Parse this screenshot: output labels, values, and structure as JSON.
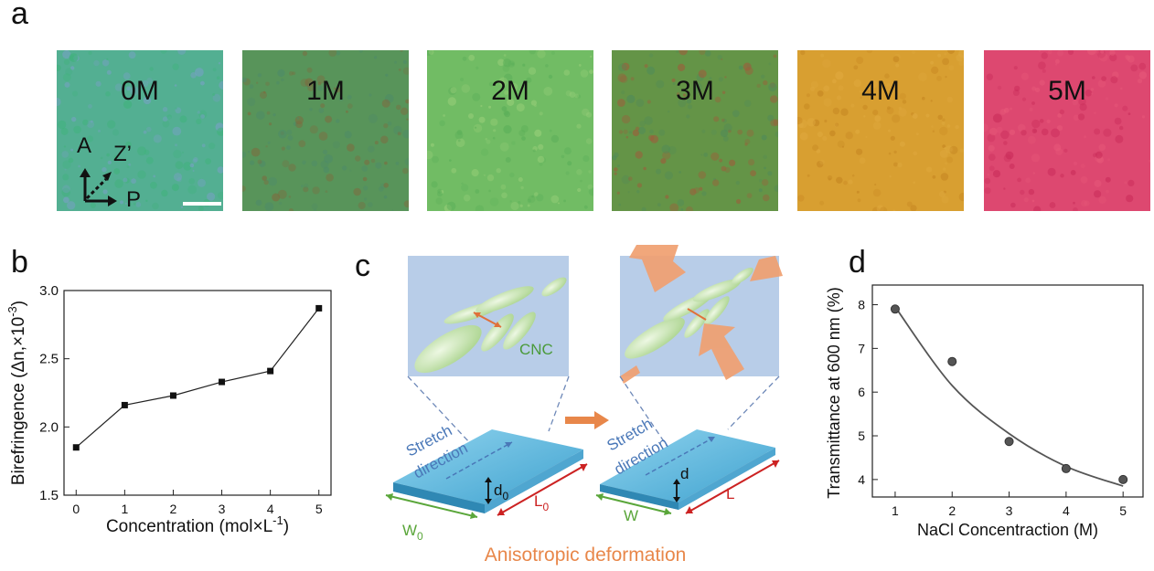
{
  "panel_labels": {
    "a": "a",
    "b": "b",
    "c": "c",
    "d": "d"
  },
  "micrographs": [
    {
      "label": "0M",
      "color_main": "#5fae9e",
      "color_b": "#7aa0c8",
      "color_c": "#3fb37a"
    },
    {
      "label": "1M",
      "color_main": "#5f9a52",
      "color_b": "#7f6a3e",
      "color_c": "#4d8a6a"
    },
    {
      "label": "2M",
      "color_main": "#7fc46a",
      "color_b": "#9bd07a",
      "color_c": "#5aae58"
    },
    {
      "label": "3M",
      "color_main": "#6f9a3e",
      "color_b": "#a05a3a",
      "color_c": "#4f8a5a"
    },
    {
      "label": "4M",
      "color_main": "#d49a2a",
      "color_b": "#c48420",
      "color_c": "#e0aa40"
    },
    {
      "label": "5M",
      "color_main": "#d8406a",
      "color_b": "#c82a58",
      "color_c": "#e85a7a"
    }
  ],
  "polarizer": {
    "a": "A",
    "z": "Z’",
    "p": "P"
  },
  "panel_c": {
    "stretch_line1": "Stretch",
    "stretch_line2": "direction",
    "cnc": "CNC",
    "d0": "d",
    "d0_sub": "0",
    "l0": "L",
    "l0_sub": "0",
    "w0": "W",
    "w0_sub": "0",
    "d": "d",
    "l": "L",
    "w": "W",
    "caption": "Anisotropic deformation",
    "colors": {
      "box": "#b9cbe6",
      "ellipse": "#cfe7b8",
      "arrow": "#e8874a",
      "slab": "#5fb8dc",
      "blue_text": "#4a78b8",
      "green": "#5aa63a",
      "red": "#cc2222"
    }
  },
  "chart_data": [
    {
      "type": "line",
      "x": [
        0,
        1,
        2,
        3,
        4,
        5
      ],
      "y": [
        1.85,
        2.16,
        2.23,
        2.33,
        2.41,
        2.87
      ],
      "xlabel": "Concentration (mol×L",
      "xlabel_sup": "-1",
      "xlabel_end": ")",
      "ylabel": "Birefringence (Δn,×10",
      "ylabel_sup": "-3",
      "ylabel_end": ")",
      "xlim": [
        -0.25,
        5.25
      ],
      "ylim": [
        1.5,
        3.0
      ],
      "xticks": [
        "0",
        "1",
        "2",
        "3",
        "4",
        "5"
      ],
      "yticks": [
        "1.5",
        "2.0",
        "2.5",
        "3.0"
      ],
      "marker": "square"
    },
    {
      "type": "scatter",
      "x": [
        1,
        2,
        3,
        4,
        5
      ],
      "y": [
        7.9,
        6.7,
        4.87,
        4.25,
        4.0
      ],
      "fit": [
        7.95,
        6.15,
        5.05,
        4.3,
        3.85
      ],
      "xlabel": "NaCl Concentraction (M)",
      "ylabel": "Transmittance at 600 nm (%)",
      "xlim": [
        0.6,
        5.35
      ],
      "ylim": [
        3.6,
        8.45
      ],
      "xticks": [
        "1",
        "2",
        "3",
        "4",
        "5"
      ],
      "yticks": [
        "4",
        "5",
        "6",
        "7",
        "8"
      ],
      "marker": "circle"
    }
  ]
}
